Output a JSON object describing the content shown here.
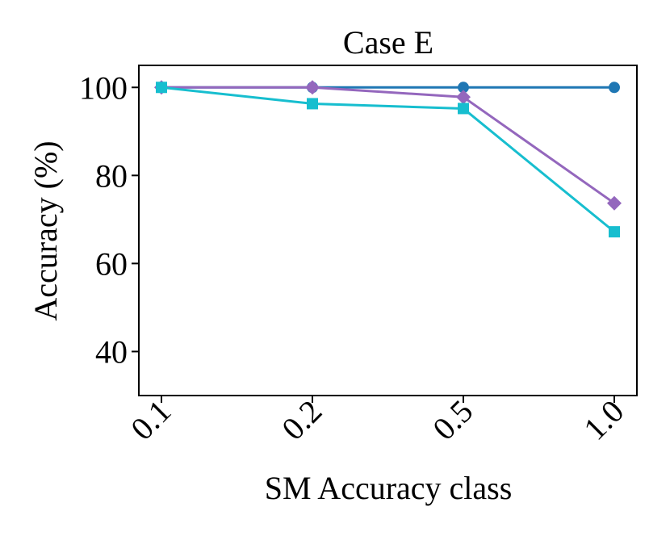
{
  "chart_data": {
    "type": "line",
    "title": "Case E",
    "xlabel": "SM Accuracy class",
    "ylabel": "Accuracy (%)",
    "categories": [
      "0.1",
      "0.2",
      "0.5",
      "1.0"
    ],
    "ylim": [
      30,
      105
    ],
    "yticks": [
      40,
      60,
      80,
      100
    ],
    "grid": false,
    "legend": "none",
    "series": [
      {
        "color": "#1f77b4",
        "marker": "circle",
        "values": [
          100,
          100,
          100,
          100
        ]
      },
      {
        "color": "#9467bd",
        "marker": "diamond",
        "values": [
          100,
          100,
          97.8,
          73.7
        ]
      },
      {
        "color": "#17becf",
        "marker": "square",
        "values": [
          100,
          96.3,
          95.2,
          67.2
        ]
      }
    ]
  }
}
